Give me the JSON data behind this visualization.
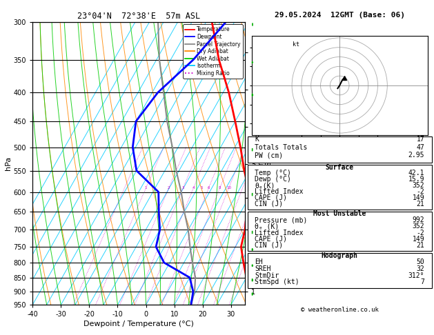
{
  "title_left": "23°04'N  72°38'E  57m ASL",
  "title_right": "29.05.2024  12GMT (Base: 06)",
  "xlabel": "Dewpoint / Temperature (°C)",
  "pressure_levels": [
    300,
    350,
    400,
    450,
    500,
    550,
    600,
    650,
    700,
    750,
    800,
    850,
    900,
    950
  ],
  "temp_xticks": [
    -40,
    -30,
    -20,
    -10,
    0,
    10,
    20,
    30
  ],
  "temp_profile": {
    "pressure": [
      950,
      900,
      850,
      800,
      750,
      700,
      650,
      600,
      550,
      500,
      450,
      400,
      350,
      300
    ],
    "temp": [
      42.1,
      36.0,
      30.0,
      26.0,
      22.0,
      20.0,
      17.0,
      14.0,
      8.0,
      2.0,
      -5.0,
      -13.0,
      -23.0,
      -33.0
    ],
    "color": "#ff0000",
    "linewidth": 2.0
  },
  "dewpoint_profile": {
    "pressure": [
      950,
      900,
      850,
      800,
      750,
      700,
      650,
      600,
      550,
      500,
      450,
      400,
      350,
      300
    ],
    "temp": [
      15.9,
      14.0,
      10.0,
      -2.0,
      -8.0,
      -10.0,
      -14.0,
      -18.0,
      -30.0,
      -36.0,
      -40.0,
      -38.0,
      -32.0,
      -28.0
    ],
    "color": "#0000ff",
    "linewidth": 2.0
  },
  "parcel_profile": {
    "pressure": [
      950,
      900,
      850,
      800,
      750,
      700,
      650,
      600,
      550,
      500,
      450,
      400,
      350,
      300
    ],
    "temp": [
      15.9,
      14.5,
      12.0,
      8.0,
      4.0,
      0.0,
      -5.0,
      -10.0,
      -16.0,
      -22.0,
      -29.0,
      -36.0,
      -44.0,
      -52.0
    ],
    "color": "#888888",
    "linewidth": 1.5
  },
  "isotherm_color": "#00ccff",
  "dry_adiabat_color": "#ff8800",
  "wet_adiabat_color": "#00cc00",
  "mixing_ratio_color": "#cc00cc",
  "legend_entries": [
    "Temperature",
    "Dewpoint",
    "Parcel Trajectory",
    "Dry Adiabat",
    "Wet Adiabat",
    "Isotherm",
    "Mixing Ratio"
  ],
  "legend_colors": [
    "#ff0000",
    "#0000ff",
    "#888888",
    "#ff8800",
    "#00cc00",
    "#00ccff",
    "#cc00cc"
  ],
  "legend_styles": [
    "-",
    "-",
    "-",
    "-",
    "-",
    "-",
    ":"
  ],
  "stats_K": 17,
  "stats_TT": 47,
  "stats_PW": "2.95",
  "surface_temp": "42.1",
  "surface_dewp": "15.9",
  "surface_thetae": 352,
  "surface_li": -2,
  "surface_cape": 149,
  "surface_cin": 21,
  "mu_pressure": 992,
  "mu_thetae": 352,
  "mu_li": -2,
  "mu_cape": 149,
  "mu_cin": 21,
  "hodo_EH": 50,
  "hodo_SREH": 32,
  "hodo_StmDir": "312°",
  "hodo_StmSpd": 7,
  "copyright": "© weatheronline.co.uk"
}
